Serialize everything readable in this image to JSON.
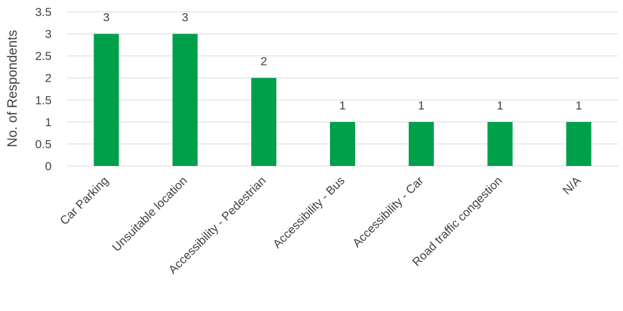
{
  "chart_data": {
    "type": "bar",
    "title": "",
    "xlabel": "",
    "ylabel": "No. of Respondents",
    "ylim": [
      0,
      3.5
    ],
    "yticks": [
      "0",
      "0.5",
      "1",
      "1.5",
      "2",
      "2.5",
      "3",
      "3.5"
    ],
    "categories": [
      "Car Parking",
      "Unsuitable location",
      "Accessibility - Pedestrian",
      "Accessibility - Bus",
      "Accessibility - Car",
      "Road traffic congestion",
      "N/A"
    ],
    "values": [
      3,
      3,
      2,
      1,
      1,
      1,
      1
    ],
    "data_labels": [
      "3",
      "3",
      "2",
      "1",
      "1",
      "1",
      "1"
    ],
    "bar_color": "#00A04B",
    "gridline_color": "#D9D9D9",
    "grid": true,
    "legend": "none"
  }
}
